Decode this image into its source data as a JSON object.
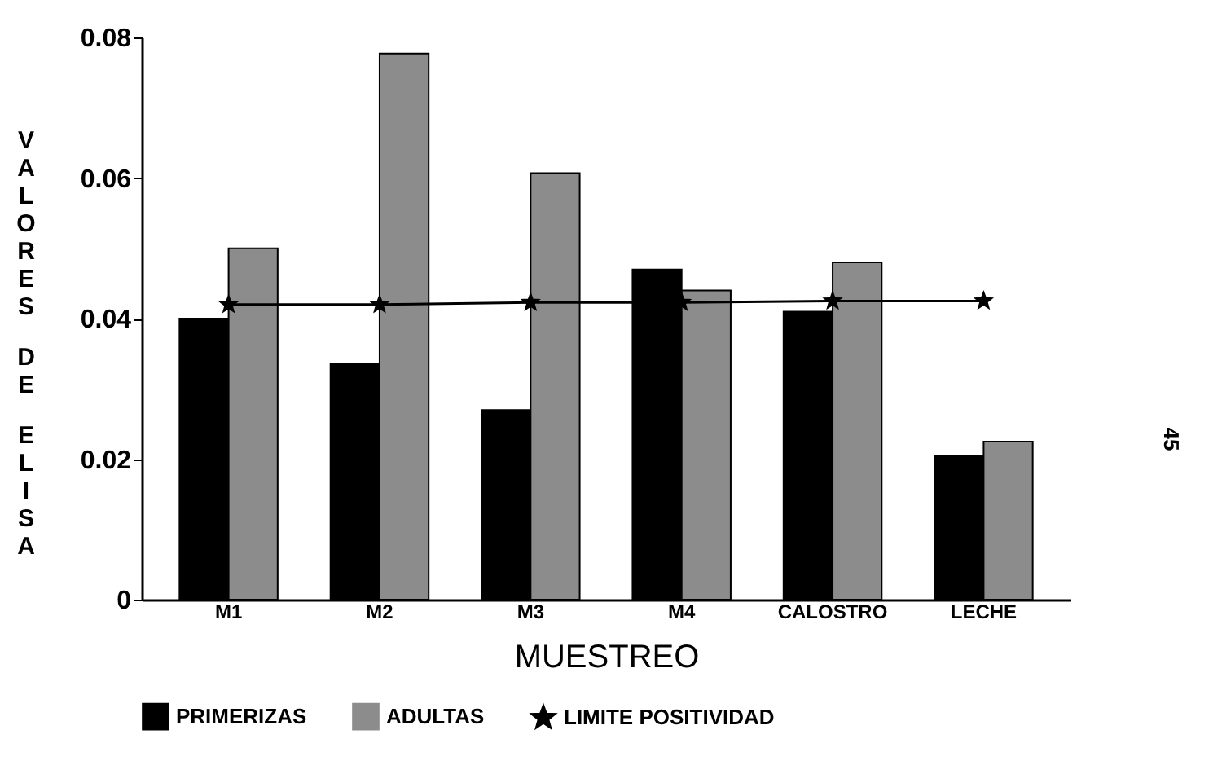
{
  "chart_data": {
    "type": "bar",
    "xlabel": "MUESTREO",
    "ylabel": "VALORES DE ELISA",
    "categories": [
      "M1",
      "M2",
      "M3",
      "M4",
      "CALOSTRO",
      "LECHE"
    ],
    "series": [
      {
        "name": "PRIMERIZAS",
        "color": "#000000",
        "values": [
          0.04,
          0.0335,
          0.027,
          0.047,
          0.041,
          0.0205
        ]
      },
      {
        "name": "ADULTAS",
        "color": "#8c8c8c",
        "values": [
          0.05,
          0.0777,
          0.0607,
          0.044,
          0.048,
          0.0225
        ]
      },
      {
        "name": "LIMITE POSITIVIDAD",
        "type": "line",
        "color": "#000000",
        "marker": "star",
        "values": [
          0.042,
          0.042,
          0.0423,
          0.0423,
          0.0425,
          0.0425
        ]
      }
    ],
    "ylim": [
      0,
      0.08
    ],
    "yticks": [
      {
        "value": 0,
        "label": "0"
      },
      0.02,
      0.04,
      0.06,
      0.08
    ],
    "legend": "bottom",
    "grid": false,
    "annotations": [
      "45"
    ]
  }
}
